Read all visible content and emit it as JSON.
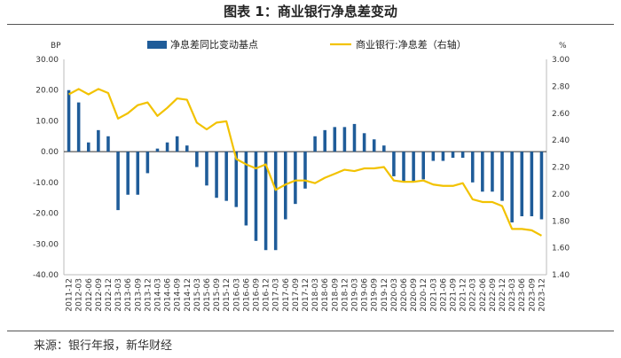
{
  "title": "图表 1：商业银行净息差变动",
  "source": "来源：银行年报，新华财经",
  "colors": {
    "bar": "#1f5c99",
    "line": "#f2c200",
    "zero": "#333333",
    "axis": "#bbbbbb"
  },
  "chart_data": {
    "type": "bar+line",
    "categories": [
      "2011-12",
      "2012-03",
      "2012-06",
      "2012-09",
      "2012-12",
      "2013-03",
      "2013-06",
      "2013-09",
      "2013-12",
      "2014-03",
      "2014-06",
      "2014-09",
      "2014-12",
      "2015-03",
      "2015-06",
      "2015-09",
      "2015-12",
      "2016-03",
      "2016-06",
      "2016-09",
      "2016-12",
      "2017-03",
      "2017-06",
      "2017-09",
      "2017-12",
      "2018-03",
      "2018-06",
      "2018-09",
      "2018-12",
      "2019-03",
      "2019-06",
      "2019-09",
      "2019-12",
      "2020-03",
      "2020-06",
      "2020-09",
      "2020-12",
      "2021-03",
      "2021-06",
      "2021-09",
      "2021-12",
      "2022-03",
      "2022-06",
      "2022-09",
      "2022-12",
      "2023-03",
      "2023-06",
      "2023-09",
      "2023-12"
    ],
    "series": [
      {
        "name": "净息差同比变动基点",
        "type": "bar",
        "axis": "left",
        "values": [
          20,
          16,
          3,
          7,
          5,
          -19,
          -14,
          -14,
          -7,
          1,
          3,
          5,
          2,
          -5,
          -11,
          -15,
          -16,
          -18,
          -24,
          -29,
          -32,
          -32,
          -22,
          -17,
          -12,
          5,
          7,
          8,
          8,
          9,
          6,
          4,
          2,
          -8,
          -10,
          -10,
          -9,
          -3,
          -3,
          -2,
          -2,
          -10,
          -13,
          -13,
          -16,
          -23,
          -21,
          -21,
          -22
        ]
      },
      {
        "name": "商业银行:净息差（右轴）",
        "type": "line",
        "axis": "right",
        "values": [
          2.74,
          2.78,
          2.74,
          2.78,
          2.75,
          2.56,
          2.6,
          2.66,
          2.68,
          2.58,
          2.64,
          2.71,
          2.7,
          2.53,
          2.48,
          2.53,
          2.54,
          2.26,
          2.22,
          2.19,
          2.22,
          2.03,
          2.07,
          2.1,
          2.1,
          2.08,
          2.12,
          2.15,
          2.18,
          2.17,
          2.19,
          2.19,
          2.2,
          2.1,
          2.09,
          2.09,
          2.1,
          2.07,
          2.06,
          2.06,
          2.08,
          1.96,
          1.94,
          1.94,
          1.91,
          1.74,
          1.74,
          1.73,
          1.69
        ]
      }
    ],
    "y_left": {
      "unit": "BP",
      "min": -40,
      "max": 30,
      "ticks": [
        "30.00",
        "20.00",
        "10.00",
        "0.00",
        "-10.00",
        "-20.00",
        "-30.00",
        "-40.00"
      ]
    },
    "y_right": {
      "unit": "%",
      "min": 1.4,
      "max": 3.0,
      "ticks": [
        "3.00",
        "2.80",
        "2.60",
        "2.40",
        "2.20",
        "2.00",
        "1.80",
        "1.60",
        "1.40"
      ]
    },
    "legend_placement": "top-center"
  }
}
